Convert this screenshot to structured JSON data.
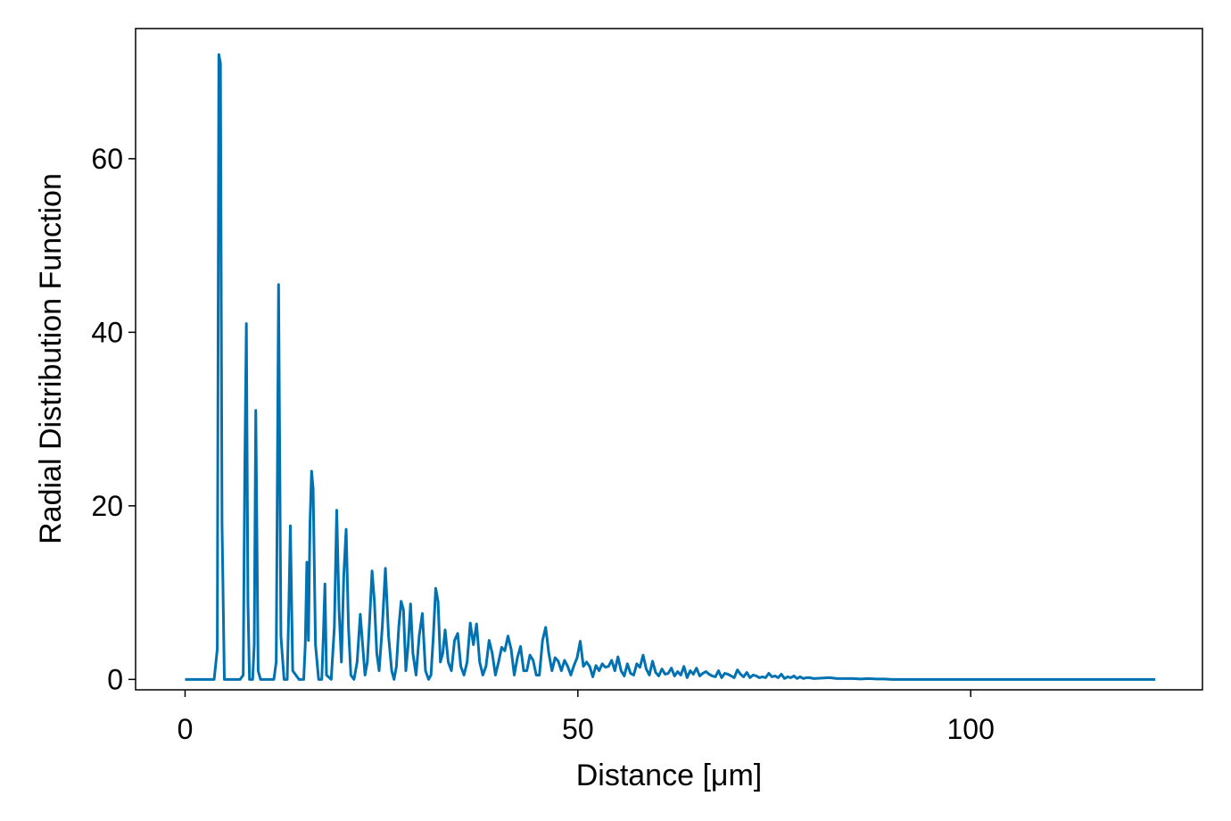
{
  "chart_data": {
    "type": "line",
    "title": "",
    "xlabel": "Distance [μm]",
    "ylabel": "Radial Distribution Function",
    "xlim": [
      -6.3,
      129.5
    ],
    "ylim": [
      -1.2,
      75
    ],
    "xticks": [
      0,
      50,
      100
    ],
    "yticks": [
      0,
      20,
      40,
      60
    ],
    "grid": false,
    "legend": "none",
    "color": "#0072b2",
    "series": [
      {
        "x": [
          0,
          1,
          2,
          3,
          3.7,
          4.1,
          4.3,
          4.5,
          4.7,
          5.0,
          5.4,
          6,
          7,
          7.4,
          7.6,
          7.8,
          8.0,
          8.2,
          8.6,
          8.8,
          9.0,
          9.3,
          9.6,
          10,
          11,
          11.3,
          11.6,
          11.9,
          12.2,
          12.6,
          13.0,
          13.2,
          13.4,
          13.7,
          14.5,
          15.1,
          15.3,
          15.5,
          15.7,
          15.9,
          16.1,
          16.3,
          16.6,
          17.0,
          17.4,
          17.6,
          17.8,
          18.0,
          18.6,
          19.0,
          19.3,
          19.6,
          19.9,
          20.2,
          20.5,
          20.8,
          21.1,
          21.5,
          21.9,
          22.3,
          22.6,
          22.9,
          23.2,
          23.5,
          23.8,
          24.1,
          24.4,
          24.7,
          25.1,
          25.5,
          25.9,
          26.3,
          26.6,
          26.9,
          27.2,
          27.5,
          27.8,
          28.1,
          28.4,
          28.7,
          29.0,
          29.4,
          29.8,
          30.2,
          30.6,
          31.0,
          31.3,
          31.6,
          31.9,
          32.2,
          32.5,
          32.8,
          33.1,
          33.5,
          33.9,
          34.3,
          34.7,
          35.1,
          35.5,
          35.9,
          36.3,
          36.7,
          37.1,
          37.5,
          37.9,
          38.3,
          38.7,
          39.1,
          39.5,
          39.9,
          40.3,
          40.7,
          41.1,
          41.5,
          41.9,
          42.3,
          42.7,
          43.1,
          43.5,
          43.9,
          44.3,
          44.7,
          45.1,
          45.5,
          45.9,
          46.3,
          46.7,
          47.1,
          47.5,
          47.9,
          48.3,
          48.7,
          49.1,
          49.5,
          49.9,
          50.3,
          50.7,
          51.1,
          51.5,
          51.9,
          52.3,
          52.7,
          53.1,
          53.5,
          53.9,
          54.3,
          54.7,
          55.1,
          55.5,
          55.9,
          56.3,
          56.7,
          57.1,
          57.5,
          57.9,
          58.3,
          58.7,
          59.1,
          59.5,
          59.9,
          60.3,
          60.7,
          61.1,
          61.5,
          61.9,
          62.3,
          62.7,
          63.1,
          63.5,
          63.9,
          64.3,
          64.7,
          65.1,
          65.5,
          65.9,
          66.3,
          66.7,
          67.1,
          67.5,
          67.9,
          68.3,
          68.7,
          69.1,
          69.5,
          69.9,
          70.3,
          70.7,
          71.1,
          71.5,
          71.9,
          72.3,
          72.7,
          73.1,
          73.5,
          73.9,
          74.3,
          74.7,
          75.1,
          75.5,
          75.9,
          76.3,
          76.7,
          77.1,
          77.5,
          77.9,
          78.3,
          78.7,
          79.1,
          79.5,
          80,
          81,
          82,
          83,
          84,
          85,
          86,
          87,
          88,
          89,
          90,
          92,
          95,
          100,
          105,
          110,
          115,
          120,
          123.5
        ],
        "y": [
          0,
          0,
          0,
          0,
          0,
          3.5,
          72,
          71,
          18,
          0,
          0,
          0,
          0,
          0.5,
          24,
          41,
          9,
          0,
          0,
          4,
          31,
          1,
          0,
          0,
          0,
          0,
          2,
          45.5,
          5,
          0,
          0,
          8,
          17.7,
          1,
          0,
          0,
          4,
          13.5,
          4.5,
          18,
          24,
          22,
          4,
          0,
          0,
          5,
          11,
          0.5,
          0,
          6,
          19.5,
          8,
          2,
          12,
          17.3,
          6,
          0.5,
          0,
          2,
          7.5,
          4,
          0.5,
          2,
          7,
          12.5,
          9,
          3,
          1,
          6,
          12.8,
          5,
          1,
          0,
          1.5,
          6,
          9,
          8,
          1,
          4,
          8.7,
          3,
          0.5,
          5,
          7.6,
          1,
          0,
          0.5,
          5,
          10.5,
          9,
          2,
          3,
          5.7,
          2,
          1,
          4.5,
          5.3,
          1.5,
          0.5,
          2,
          6.5,
          4,
          6.4,
          2,
          0.5,
          1.5,
          4.5,
          3,
          0.5,
          2,
          3.7,
          3.3,
          5,
          3.5,
          0.5,
          2.5,
          3.8,
          1,
          1,
          2.8,
          2.2,
          0.5,
          0.5,
          4.5,
          6,
          3,
          1,
          2.5,
          2.1,
          1,
          2.2,
          1.5,
          0.5,
          1.6,
          2.5,
          4.4,
          1.5,
          2,
          1.5,
          0.3,
          1.6,
          1,
          1.8,
          1.4,
          1.5,
          2.2,
          1,
          2.6,
          1,
          0.4,
          1.8,
          0.7,
          0.5,
          1.8,
          1.4,
          2.8,
          1.2,
          0.5,
          2.1,
          0.8,
          0.4,
          1.2,
          0.6,
          0.7,
          1.3,
          0.4,
          0.9,
          0.5,
          1.5,
          0.2,
          1.0,
          0.6,
          1.3,
          0.4,
          0.7,
          0.9,
          0.6,
          0.4,
          0.3,
          1.0,
          0.2,
          0.7,
          0.6,
          0.4,
          0.2,
          1.1,
          0.6,
          0.3,
          0.8,
          0.2,
          0.5,
          0.4,
          0.2,
          0.3,
          0.2,
          0.7,
          0.3,
          0.4,
          0.2,
          0.6,
          0.1,
          0.3,
          0.2,
          0.4,
          0.1,
          0.3,
          0.1,
          0.2,
          0.2,
          0.1,
          0.15,
          0.2,
          0.1,
          0.1,
          0.1,
          0.05,
          0.1,
          0.05,
          0.05,
          0,
          0,
          0,
          0,
          0,
          0,
          0,
          0,
          0
        ]
      }
    ]
  }
}
